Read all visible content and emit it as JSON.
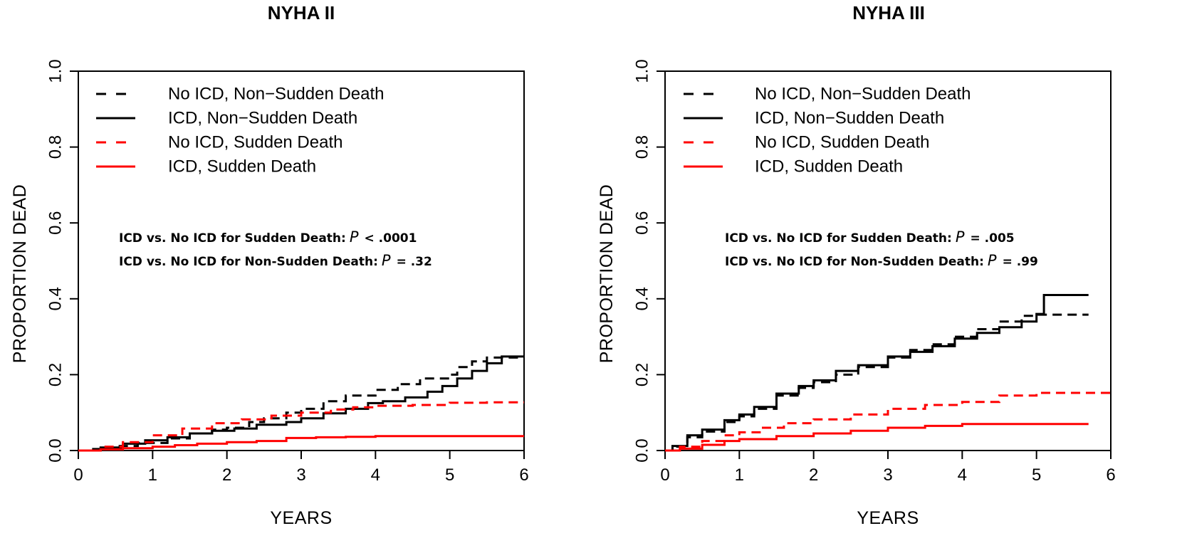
{
  "chart_data": [
    {
      "type": "line",
      "title": "NYHA II",
      "xlabel": "YEARS",
      "ylabel": "PROPORTION DEAD",
      "xlim": [
        0,
        6
      ],
      "ylim": [
        0,
        1
      ],
      "xticks": [
        0,
        1,
        2,
        3,
        4,
        5,
        6
      ],
      "yticks": [
        0.0,
        0.2,
        0.4,
        0.6,
        0.8,
        1.0
      ],
      "xtick_labels": [
        "0",
        "1",
        "2",
        "3",
        "4",
        "5",
        "6"
      ],
      "ytick_labels": [
        "0.0",
        "0.2",
        "0.4",
        "0.6",
        "0.8",
        "1.0"
      ],
      "legend_position": "top-left",
      "annotations": [
        {
          "label": "ICD vs. No ICD for Sudden Death:",
          "p_symbol": "P",
          "p_value": "< .0001"
        },
        {
          "label": "ICD vs. No ICD for Non-Sudden Death:",
          "p_symbol": "P",
          "p_value": "= .32"
        }
      ],
      "series": [
        {
          "name": "No ICD, Non−Sudden Death",
          "color": "#000000",
          "dash": "dashed",
          "x": [
            0,
            0.2,
            0.5,
            0.8,
            1.0,
            1.2,
            1.5,
            1.8,
            2.0,
            2.3,
            2.5,
            2.8,
            3.0,
            3.3,
            3.6,
            4.0,
            4.3,
            4.6,
            5.0,
            5.1,
            5.3,
            5.5,
            5.8,
            6.0
          ],
          "y": [
            0,
            0.004,
            0.012,
            0.02,
            0.02,
            0.032,
            0.045,
            0.055,
            0.06,
            0.075,
            0.085,
            0.1,
            0.11,
            0.13,
            0.145,
            0.16,
            0.175,
            0.19,
            0.2,
            0.22,
            0.235,
            0.245,
            0.245,
            0.245
          ]
        },
        {
          "name": "ICD, Non−Sudden Death",
          "color": "#000000",
          "dash": "solid",
          "x": [
            0,
            0.3,
            0.6,
            0.9,
            1.2,
            1.5,
            1.8,
            2.1,
            2.4,
            2.8,
            3.0,
            3.3,
            3.6,
            3.9,
            4.1,
            4.4,
            4.7,
            4.9,
            5.1,
            5.3,
            5.5,
            5.7,
            6.0
          ],
          "y": [
            0,
            0.008,
            0.018,
            0.027,
            0.035,
            0.045,
            0.052,
            0.058,
            0.068,
            0.075,
            0.085,
            0.098,
            0.11,
            0.125,
            0.13,
            0.14,
            0.155,
            0.17,
            0.19,
            0.21,
            0.23,
            0.248,
            0.248
          ]
        },
        {
          "name": "No ICD, Sudden Death",
          "color": "#ff0000",
          "dash": "dashed",
          "x": [
            0,
            0.3,
            0.6,
            1.0,
            1.4,
            1.8,
            2.2,
            2.6,
            3.0,
            3.4,
            3.7,
            4.0,
            4.5,
            5.0,
            5.5,
            6.0
          ],
          "y": [
            0,
            0.01,
            0.022,
            0.04,
            0.058,
            0.072,
            0.082,
            0.092,
            0.1,
            0.108,
            0.114,
            0.118,
            0.12,
            0.126,
            0.127,
            0.127
          ]
        },
        {
          "name": "ICD, Sudden Death",
          "color": "#ff0000",
          "dash": "solid",
          "x": [
            0,
            0.3,
            0.6,
            1.0,
            1.3,
            1.6,
            2.0,
            2.4,
            2.8,
            3.2,
            3.6,
            4.0,
            4.5,
            5.0,
            6.0
          ],
          "y": [
            0,
            0.003,
            0.006,
            0.01,
            0.014,
            0.018,
            0.022,
            0.025,
            0.033,
            0.035,
            0.036,
            0.038,
            0.038,
            0.038,
            0.038
          ]
        }
      ]
    },
    {
      "type": "line",
      "title": "NYHA III",
      "xlabel": "YEARS",
      "ylabel": "PROPORTION DEAD",
      "xlim": [
        0,
        6
      ],
      "ylim": [
        0,
        1
      ],
      "xticks": [
        0,
        1,
        2,
        3,
        4,
        5,
        6
      ],
      "yticks": [
        0.0,
        0.2,
        0.4,
        0.6,
        0.8,
        1.0
      ],
      "xtick_labels": [
        "0",
        "1",
        "2",
        "3",
        "4",
        "5",
        "6"
      ],
      "ytick_labels": [
        "0.0",
        "0.2",
        "0.4",
        "0.6",
        "0.8",
        "1.0"
      ],
      "legend_position": "top-left",
      "annotations": [
        {
          "label": "ICD vs. No ICD for Sudden Death:",
          "p_symbol": "P",
          "p_value": "= .005"
        },
        {
          "label": "ICD vs. No ICD for Non-Sudden Death:",
          "p_symbol": "P",
          "p_value": "= .99"
        }
      ],
      "series": [
        {
          "name": "No ICD, Non−Sudden Death",
          "color": "#000000",
          "dash": "dashed",
          "x": [
            0,
            0.1,
            0.3,
            0.5,
            0.8,
            1.0,
            1.2,
            1.5,
            1.8,
            2.0,
            2.3,
            2.6,
            3.0,
            3.3,
            3.6,
            3.9,
            4.2,
            4.5,
            4.8,
            5.0,
            5.3,
            5.7
          ],
          "y": [
            0,
            0.01,
            0.035,
            0.05,
            0.075,
            0.09,
            0.11,
            0.145,
            0.165,
            0.18,
            0.2,
            0.22,
            0.245,
            0.265,
            0.28,
            0.3,
            0.32,
            0.34,
            0.355,
            0.358,
            0.358,
            0.358
          ]
        },
        {
          "name": "ICD, Non−Sudden Death",
          "color": "#000000",
          "dash": "solid",
          "x": [
            0,
            0.1,
            0.3,
            0.5,
            0.8,
            1.0,
            1.2,
            1.5,
            1.8,
            2.0,
            2.3,
            2.6,
            3.0,
            3.3,
            3.6,
            3.9,
            4.2,
            4.5,
            4.8,
            5.0,
            5.1,
            5.7
          ],
          "y": [
            0,
            0.012,
            0.04,
            0.055,
            0.08,
            0.095,
            0.115,
            0.15,
            0.17,
            0.185,
            0.21,
            0.225,
            0.248,
            0.26,
            0.275,
            0.295,
            0.31,
            0.325,
            0.34,
            0.36,
            0.41,
            0.41
          ]
        },
        {
          "name": "No ICD, Sudden Death",
          "color": "#ff0000",
          "dash": "dashed",
          "x": [
            0,
            0.2,
            0.5,
            0.8,
            1.0,
            1.3,
            1.6,
            2.0,
            2.5,
            3.0,
            3.5,
            4.0,
            4.5,
            5.0,
            5.7,
            6.0
          ],
          "y": [
            0,
            0.01,
            0.025,
            0.04,
            0.048,
            0.06,
            0.072,
            0.082,
            0.095,
            0.11,
            0.12,
            0.128,
            0.145,
            0.152,
            0.152,
            0.152
          ]
        },
        {
          "name": "ICD, Sudden Death",
          "color": "#ff0000",
          "dash": "solid",
          "x": [
            0,
            0.2,
            0.5,
            0.8,
            1.0,
            1.5,
            2.0,
            2.5,
            3.0,
            3.5,
            4.0,
            4.5,
            5.0,
            5.7
          ],
          "y": [
            0,
            0.005,
            0.015,
            0.025,
            0.03,
            0.038,
            0.045,
            0.052,
            0.06,
            0.065,
            0.07,
            0.07,
            0.07,
            0.07
          ]
        }
      ]
    }
  ]
}
